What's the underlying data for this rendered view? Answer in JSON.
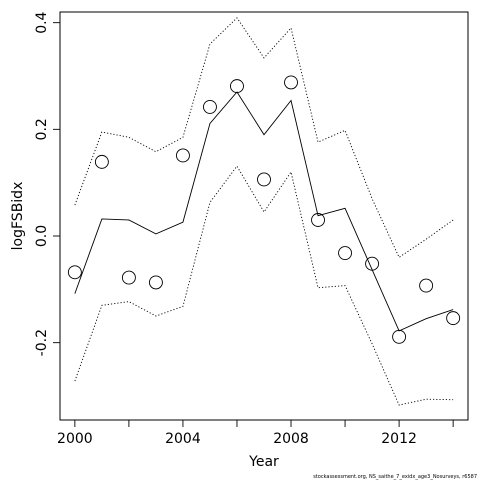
{
  "chart_data": {
    "type": "line",
    "xlabel": "Year",
    "ylabel": "logFSBidx",
    "xlim": [
      1999.45,
      2014.55
    ],
    "ylim": [
      -0.345,
      0.42
    ],
    "x_ticks": [
      2000,
      2004,
      2008,
      2012
    ],
    "x_minor_ticks": [
      2002,
      2006,
      2010,
      2014
    ],
    "y_ticks": [
      -0.2,
      0.0,
      0.2,
      0.4
    ],
    "y_tick_labels": [
      "-0.2",
      "0.0",
      "0.2",
      "0.4"
    ],
    "x": [
      2000,
      2001,
      2002,
      2003,
      2004,
      2005,
      2006,
      2007,
      2008,
      2009,
      2010,
      2011,
      2012,
      2013,
      2014
    ],
    "observed": [
      -0.068,
      0.139,
      -0.078,
      -0.087,
      0.151,
      0.242,
      0.281,
      0.106,
      0.288,
      0.03,
      -0.032,
      -0.052,
      -0.189,
      -0.093,
      -0.154
    ],
    "fitted": [
      -0.108,
      0.032,
      0.03,
      0.004,
      0.026,
      0.211,
      0.27,
      0.19,
      0.254,
      0.038,
      0.052,
      -0.063,
      -0.178,
      -0.155,
      -0.138
    ],
    "upper": [
      0.058,
      0.195,
      0.185,
      0.158,
      0.185,
      0.36,
      0.409,
      0.334,
      0.39,
      0.176,
      0.198,
      0.07,
      -0.04,
      -0.006,
      0.03
    ],
    "lower": [
      -0.272,
      -0.13,
      -0.123,
      -0.15,
      -0.132,
      0.063,
      0.131,
      0.045,
      0.12,
      -0.097,
      -0.093,
      -0.202,
      -0.317,
      -0.306,
      -0.307
    ],
    "grid": false,
    "footer": "stockassessment.org,  NS_saithe_7_exidx_age3_Nosurveys,  r6587"
  }
}
